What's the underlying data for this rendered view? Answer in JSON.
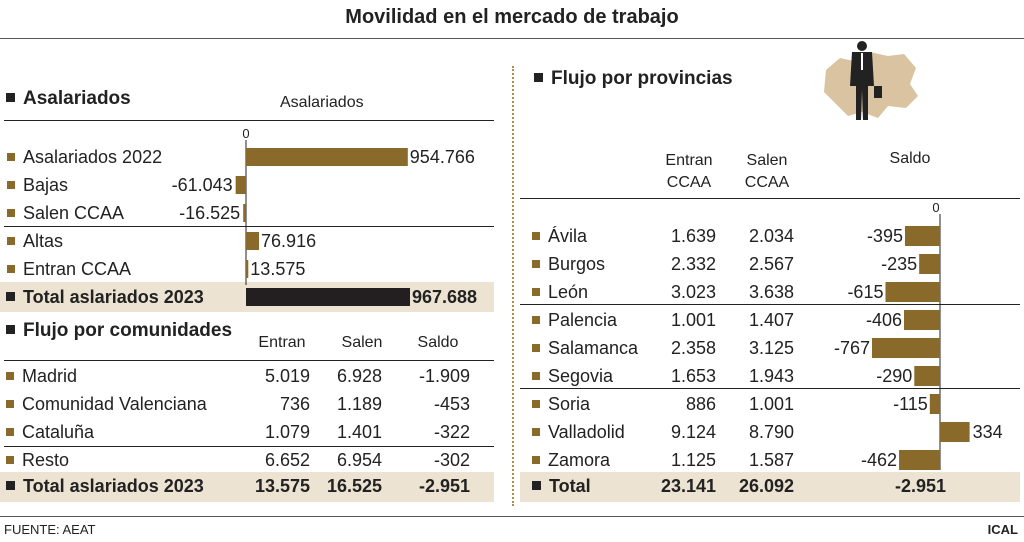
{
  "title": "Movilidad en el mercado de trabajo",
  "colors": {
    "bar": "#8a6a2a",
    "total_bar": "#231f20",
    "band": "#ece3d2"
  },
  "asalariados": {
    "heading": "Asalariados",
    "chart_title": "Asalariados",
    "zero_label": "0",
    "total_label": "Total aslariados 2023",
    "total_value": "967.688"
  },
  "comunidades": {
    "heading": "Flujo por comunidades",
    "headers": [
      "Entran",
      "Salen",
      "Saldo"
    ],
    "rows": [
      {
        "name": "Madrid",
        "entran": "5.019",
        "salen": "6.928",
        "saldo": "-1.909"
      },
      {
        "name": "Comunidad Valenciana",
        "entran": "736",
        "salen": "1.189",
        "saldo": "-453"
      },
      {
        "name": "Cataluña",
        "entran": "1.079",
        "salen": "1.401",
        "saldo": "-322"
      },
      {
        "name": "Resto",
        "entran": "6.652",
        "salen": "6.954",
        "saldo": "-302"
      }
    ],
    "total": {
      "name": "Total aslariados 2023",
      "entran": "13.575",
      "salen": "16.525",
      "saldo": "-2.951"
    }
  },
  "provincias": {
    "heading": "Flujo por provincias",
    "col_entran": [
      "Entran",
      "CCAA"
    ],
    "col_salen": [
      "Salen",
      "CCAA"
    ],
    "col_saldo": "Saldo",
    "zero_label": "0",
    "rows": [
      {
        "name": "Ávila",
        "entran": "1.639",
        "salen": "2.034"
      },
      {
        "name": "Burgos",
        "entran": "2.332",
        "salen": "2.567"
      },
      {
        "name": "León",
        "entran": "3.023",
        "salen": "3.638"
      },
      {
        "name": "Palencia",
        "entran": "1.001",
        "salen": "1.407"
      },
      {
        "name": "Salamanca",
        "entran": "2.358",
        "salen": "3.125"
      },
      {
        "name": "Segovia",
        "entran": "1.653",
        "salen": "1.943"
      },
      {
        "name": "Soria",
        "entran": "886",
        "salen": "1.001"
      },
      {
        "name": "Valladolid",
        "entran": "9.124",
        "salen": "8.790"
      },
      {
        "name": "Zamora",
        "entran": "1.125",
        "salen": "1.587"
      }
    ],
    "total": {
      "name": "Total",
      "entran": "23.141",
      "salen": "26.092",
      "saldo": "-2.951"
    }
  },
  "footer": {
    "source": "FUENTE: AEAT",
    "brand": "ICAL"
  },
  "chart_data": [
    {
      "type": "bar",
      "title": "Asalariados",
      "orientation": "horizontal",
      "categories": [
        "Asalariados 2022",
        "Bajas",
        "Salen CCAA",
        "Altas",
        "Entran CCAA",
        "Total aslariados 2023"
      ],
      "values": [
        954766,
        -61043,
        -16525,
        76916,
        13575,
        967688
      ],
      "value_labels": [
        "954.766",
        "-61.043",
        "-16.525",
        "76.916",
        "13.575",
        "967.688"
      ]
    },
    {
      "type": "bar",
      "title": "Saldo",
      "orientation": "horizontal",
      "categories": [
        "Ávila",
        "Burgos",
        "León",
        "Palencia",
        "Salamanca",
        "Segovia",
        "Soria",
        "Valladolid",
        "Zamora"
      ],
      "values": [
        -395,
        -235,
        -615,
        -406,
        -767,
        -290,
        -115,
        334,
        -462
      ],
      "value_labels": [
        "-395",
        "-235",
        "-615",
        "-406",
        "-767",
        "-290",
        "-115",
        "334",
        "-462"
      ]
    }
  ]
}
